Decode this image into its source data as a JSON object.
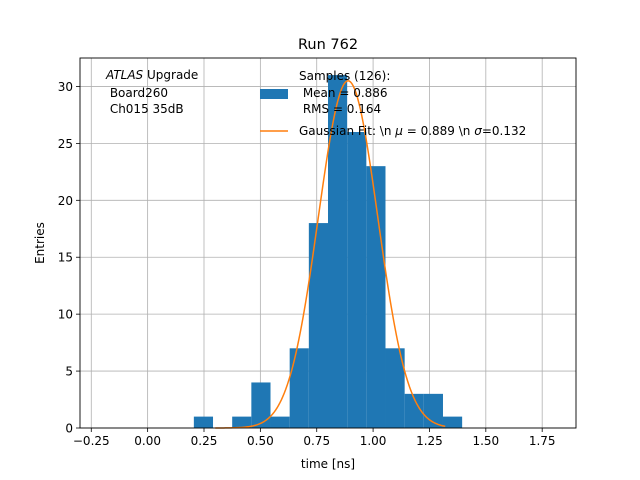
{
  "chart_data": {
    "type": "bar",
    "title": "Run 762",
    "xlabel": "time [ns]",
    "ylabel": "Entries",
    "xlim": [
      -0.3,
      1.9
    ],
    "ylim": [
      0,
      32.5
    ],
    "grid": true,
    "x_ticks": [
      -0.25,
      0.0,
      0.25,
      0.5,
      0.75,
      1.0,
      1.25,
      1.5,
      1.75
    ],
    "x_tick_labels": [
      "−0.25",
      "0.00",
      "0.25",
      "0.50",
      "0.75",
      "1.00",
      "1.25",
      "1.50",
      "1.75"
    ],
    "y_ticks": [
      0,
      5,
      10,
      15,
      20,
      25,
      30
    ],
    "y_tick_labels": [
      "0",
      "5",
      "10",
      "15",
      "20",
      "25",
      "30"
    ],
    "bin_edges": [
      0.205,
      0.29,
      0.375,
      0.46,
      0.545,
      0.63,
      0.715,
      0.8,
      0.885,
      0.97,
      1.055,
      1.14,
      1.225,
      1.31,
      1.395
    ],
    "histogram": {
      "name": "Samples (126):\n Mean = 0.886\n RMS = 0.164",
      "color": "#1f77b4",
      "counts": [
        1,
        0,
        1,
        4,
        1,
        7,
        18,
        31,
        26,
        23,
        7,
        3,
        3,
        1
      ]
    },
    "fit": {
      "name": "Gaussian Fit: \\n $\\mu$ = 0.889 \\n $\\sigma$=0.132",
      "color": "#ff7f0e",
      "mu": 0.889,
      "sigma": 0.132,
      "amplitude": 30.5,
      "x_range": [
        0.3,
        1.32
      ]
    },
    "legend_placement": "top-right",
    "annotation": {
      "italic": "ATLAS",
      "line1_rest": " Upgrade",
      "line2": " Board260",
      "line3": " Ch015 35dB"
    }
  },
  "legend_text": {
    "hist_lines": [
      "Samples (126):",
      " Mean = 0.886",
      " RMS = 0.164"
    ],
    "fit_prefix": "Gaussian Fit: \\n ",
    "fit_mu": "μ",
    "fit_mid": " = 0.889 \\n ",
    "fit_sigma": "σ",
    "fit_suffix": "=0.132"
  }
}
